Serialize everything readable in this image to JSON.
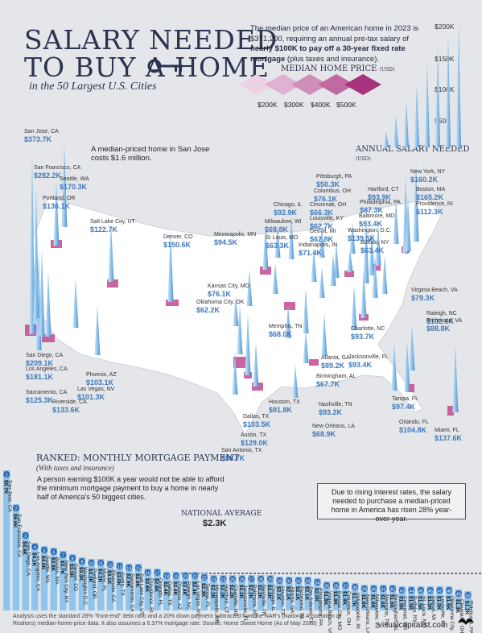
{
  "title": {
    "line1": "SALARY NEEDED",
    "line2": "TO BUY A HOME",
    "subtitle": "in the 50 Largest U.S. Cities"
  },
  "intro": {
    "part1": "The median price of an American home in 2023 is $371,200, requiring an annual pre-tax salary of ",
    "bold": "nearly $100K to pay off a 30-year fixed rate mortgage",
    "part2": " (plus taxes and insurance)."
  },
  "price_legend": {
    "title": "MEDIAN HOME PRICE",
    "unit": "(USD)",
    "ticks": [
      "$200K",
      "$300K",
      "$400K",
      "$500K"
    ]
  },
  "salary_scale": {
    "title": "ANNUAL SALARY NEEDED",
    "unit": "(USD)",
    "ticks": [
      "$200K",
      "$150K",
      "$100K",
      "$50K"
    ]
  },
  "callout": "A median-priced home in San Jose costs $1.6 million.",
  "colors": {
    "navy": "#2b3350",
    "spike": "#8fc4ec",
    "spike_dark": "#4f8fd0",
    "map": "#ffffff",
    "metro": "#c34a8e",
    "bar": "#8fc4ec",
    "text_value": "#3f78b8"
  },
  "ranked": {
    "title": "RANKED: MONTHLY MORTGAGE PAYMENT",
    "subtitle": "(With taxes and insurance)",
    "note": "A person earning $100K a year would not be able to afford the minimum mortgage payment to buy a home in nearly half of America's 50 biggest cities.",
    "national_average_label": "NATIONAL AVERAGE",
    "national_average_value": "$2.3K"
  },
  "rate_note": "Due to rising interest rates, the salary needed to purchase a median-priced home in America has risen 28% year-over-year.",
  "footer": "Analysis uses the standard 28% \"front-end\" debt ratio and a 20% down payment subtracted from the NAR's (National Association of Realtors) median-home-price data. It also assumes a 6.37% mortgage rate. Source: Home Sweet Home (As of May 2023)",
  "brand": "visualcapitalist.com",
  "chart_data": [
    {
      "type": "map",
      "title": "Annual salary needed",
      "cities": [
        {
          "name": "San Jose, CA",
          "value": "$373.7K",
          "salary_k": 373.7
        },
        {
          "name": "San Francisco, CA",
          "value": "$282.2K",
          "salary_k": 282.2
        },
        {
          "name": "Seattle, WA",
          "value": "$170.3K",
          "salary_k": 170.3
        },
        {
          "name": "Portland, OR",
          "value": "$136.1K",
          "salary_k": 136.1
        },
        {
          "name": "Salt Lake City, UT",
          "value": "$122.7K",
          "salary_k": 122.7
        },
        {
          "name": "Denver, CO",
          "value": "$150.6K",
          "salary_k": 150.6
        },
        {
          "name": "Minneapolis, MN",
          "value": "$94.5K",
          "salary_k": 94.5
        },
        {
          "name": "Chicago, IL",
          "value": "$92.9K",
          "salary_k": 92.9
        },
        {
          "name": "Milwaukee, WI",
          "value": "$68.8K",
          "salary_k": 68.8
        },
        {
          "name": "St Louis, MO",
          "value": "$63.3K",
          "salary_k": 63.3
        },
        {
          "name": "Pittsburgh, PA",
          "value": "$50.3K",
          "salary_k": 50.3
        },
        {
          "name": "Columbus, OH",
          "value": "$76.1K",
          "salary_k": 76.1
        },
        {
          "name": "Cincinnati, OH",
          "value": "$66.3K",
          "salary_k": 66.3
        },
        {
          "name": "Louisville, KY",
          "value": "$62.7K",
          "salary_k": 62.7
        },
        {
          "name": "Detroit, MI",
          "value": "$62.8K",
          "salary_k": 62.8
        },
        {
          "name": "Indianapolis, IN",
          "value": "$71.4K",
          "salary_k": 71.4
        },
        {
          "name": "Hartford, CT",
          "value": "$93.9K",
          "salary_k": 93.9
        },
        {
          "name": "Philadelphia, PA",
          "value": "$87.3K",
          "salary_k": 87.3
        },
        {
          "name": "Baltimore, MD",
          "value": "$93.4K",
          "salary_k": 93.4
        },
        {
          "name": "Washington, D.C.",
          "value": "$139.5K",
          "salary_k": 139.5
        },
        {
          "name": "Buffalo, NY",
          "value": "$63.4K",
          "salary_k": 63.4
        },
        {
          "name": "New York, NY",
          "value": "$160.2K",
          "salary_k": 160.2
        },
        {
          "name": "Boston, MA",
          "value": "$165.2K",
          "salary_k": 165.2
        },
        {
          "name": "Providence, RI",
          "value": "$112.3K",
          "salary_k": 112.3
        },
        {
          "name": "Virginia Beach, VA",
          "value": "$79.3K",
          "salary_k": 79.3
        },
        {
          "name": "Raleigh, NC",
          "value": "$102.6K",
          "salary_k": 102.6
        },
        {
          "name": "Richmond, VA",
          "value": "$88.8K",
          "salary_k": 88.8
        },
        {
          "name": "Kansas City, MO",
          "value": "$76.1K",
          "salary_k": 76.1
        },
        {
          "name": "Oklahoma City, OK",
          "value": "$62.2K",
          "salary_k": 62.2
        },
        {
          "name": "Memphis, TN",
          "value": "$68.0K",
          "salary_k": 68.0
        },
        {
          "name": "Charlotte, NC",
          "value": "$93.7K",
          "salary_k": 93.7
        },
        {
          "name": "Jacksonville, FL",
          "value": "$93.4K",
          "salary_k": 93.4
        },
        {
          "name": "Atlanta, GA",
          "value": "$89.2K",
          "salary_k": 89.2
        },
        {
          "name": "Birmingham, AL",
          "value": "$67.7K",
          "salary_k": 67.7
        },
        {
          "name": "Nashville, TN",
          "value": "$93.2K",
          "salary_k": 93.2
        },
        {
          "name": "New Orleans, LA",
          "value": "$68.9K",
          "salary_k": 68.9
        },
        {
          "name": "Tampa, FL",
          "value": "$97.4K",
          "salary_k": 97.4
        },
        {
          "name": "Orlando, FL",
          "value": "$104.8K",
          "salary_k": 104.8
        },
        {
          "name": "Miami, FL",
          "value": "$137.6K",
          "salary_k": 137.6
        },
        {
          "name": "Houston, TX",
          "value": "$91.8K",
          "salary_k": 91.8
        },
        {
          "name": "Dallas, TX",
          "value": "$103.5K",
          "salary_k": 103.5
        },
        {
          "name": "Austin, TX",
          "value": "$129.0K",
          "salary_k": 129.0
        },
        {
          "name": "San Antonio, TX",
          "value": "$88.7K",
          "salary_k": 88.7
        },
        {
          "name": "Phoenix, AZ",
          "value": "$103.1K",
          "salary_k": 103.1
        },
        {
          "name": "Las Vegas, NV",
          "value": "$101.3K",
          "salary_k": 101.3
        },
        {
          "name": "Riverside, CA",
          "value": "$133.6K",
          "salary_k": 133.6
        },
        {
          "name": "San Diego, CA",
          "value": "$209.1K",
          "salary_k": 209.1
        },
        {
          "name": "Los Angeles, CA",
          "value": "$181.1K",
          "salary_k": 181.1
        },
        {
          "name": "Sacramento, CA",
          "value": "$125.3K",
          "salary_k": 125.3
        }
      ]
    },
    {
      "type": "bar",
      "title": "Ranked: Monthly mortgage payment",
      "categories": [
        "San Jose, CA",
        "San Francisco, CA",
        "San Diego, CA",
        "Los Angeles, CA",
        "Seattle, WA",
        "Boston, MA",
        "New York City, NY",
        "Denver, CO",
        "Washington D.C.",
        "Portland, OR",
        "Miami, FL",
        "Riverside, CA",
        "Austin, TX",
        "Sacramento, CA",
        "Salt Lake City, UT",
        "Providence, RI",
        "Orlando, FL",
        "Dallas, TX",
        "Phoenix, AZ",
        "Raleigh, NC",
        "Las Vegas, NV",
        "Tampa, FL",
        "Minneapolis, MN",
        "Hartford, CT",
        "Charlotte, NC",
        "Jacksonville, FL",
        "Baltimore, MD",
        "Nashville, TN",
        "Chicago, IL",
        "Houston, TX",
        "Atlanta, GA",
        "Richmond, VA",
        "San Antonio, TX",
        "Philadelphia, PA",
        "Virginia Beach, VA",
        "Kansas City, MO",
        "Columbus, OH",
        "Indianapolis, IN",
        "New Orleans, LA",
        "Milwaukee, WI",
        "Memphis, TN",
        "Birmingham, AL",
        "Cincinnati, OH",
        "Buffalo, NY",
        "St. Louis, MO",
        "Detroit, MI",
        "Louisville, KY",
        "Oklahoma City, OK",
        "Cleveland, OH",
        "Pittsburgh, PA"
      ],
      "value_labels": [
        "$8.7K",
        "$6.6K",
        "$4.9K",
        "$4.2K",
        "$4.0K",
        "$3.9K",
        "$3.7K",
        "$3.5K",
        "$3.3K",
        "$3.2K",
        "$3.2K",
        "$3.1K",
        "$3.0K",
        "$2.9K",
        "$2.9K",
        "$2.6K",
        "$2.6K",
        "$2.4K",
        "$2.4K",
        "$2.4K",
        "$2.4K",
        "$2.3K",
        "$2.2K",
        "$2.2K",
        "$2.2K",
        "$2.2K",
        "$2.2K",
        "$2.2K",
        "$2.2K",
        "$2.1K",
        "$2.1K",
        "$2.1K",
        "$2.1K",
        "$2.0K",
        "$1.8K",
        "$1.8K",
        "$1.8K",
        "$1.7K",
        "$1.6K",
        "$1.6K",
        "$1.6K",
        "$1.6K",
        "$1.5K",
        "$1.5K",
        "$1.5K",
        "$1.5K",
        "$1.5K",
        "$1.5K",
        "$1.3K",
        "$1.2K"
      ],
      "values": [
        8.7,
        6.6,
        4.9,
        4.2,
        4.0,
        3.9,
        3.7,
        3.5,
        3.3,
        3.2,
        3.2,
        3.1,
        3.0,
        2.9,
        2.9,
        2.6,
        2.6,
        2.4,
        2.4,
        2.4,
        2.4,
        2.3,
        2.2,
        2.2,
        2.2,
        2.2,
        2.2,
        2.2,
        2.2,
        2.1,
        2.1,
        2.1,
        2.1,
        2.0,
        1.8,
        1.8,
        1.8,
        1.7,
        1.6,
        1.6,
        1.6,
        1.6,
        1.5,
        1.5,
        1.5,
        1.5,
        1.5,
        1.5,
        1.3,
        1.2
      ],
      "national_average": 2.3
    }
  ]
}
